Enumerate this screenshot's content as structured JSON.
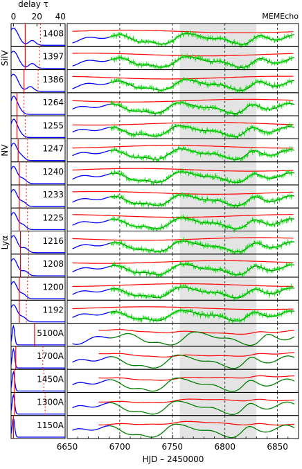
{
  "chart_data": {
    "type": "line",
    "title": "MEMEcho",
    "delay_axis": {
      "label": "delay τ",
      "ticks": [
        "0",
        "20",
        "40"
      ],
      "range": [
        -2,
        44
      ]
    },
    "time_axis": {
      "label": "HJD – 2450000",
      "ticks": [
        "6650",
        "6700",
        "6750",
        "6800",
        "6850"
      ],
      "range": [
        6650,
        6870
      ],
      "grid_dashed_at": [
        6700,
        6750,
        6800,
        6850
      ],
      "shaded_span": [
        6757,
        6830
      ]
    },
    "line_groups": [
      {
        "name": "SiIV",
        "rows": [
          "1408",
          "1397",
          "1386"
        ]
      },
      {
        "name": "NV",
        "rows": [
          "1255",
          "1247",
          "1240"
        ]
      },
      {
        "name": "Lyα",
        "rows": [
          "1225",
          "1216",
          "1208"
        ]
      }
    ],
    "rows": [
      {
        "label": "1408",
        "delay_line": 10,
        "dashed_delays": [
          23
        ]
      },
      {
        "label": "1397",
        "delay_line": 10,
        "dashed_delays": [
          22
        ]
      },
      {
        "label": "1386",
        "delay_line": 9,
        "dashed_delays": [
          21
        ]
      },
      {
        "label": "1264",
        "delay_line": 3,
        "dashed_delays": [
          9
        ]
      },
      {
        "label": "1255",
        "delay_line": 3,
        "dashed_delays": [
          10
        ]
      },
      {
        "label": "1247",
        "delay_line": 4,
        "dashed_delays": [
          12
        ]
      },
      {
        "label": "1240",
        "delay_line": 5,
        "dashed_delays": [
          11
        ]
      },
      {
        "label": "1233",
        "delay_line": 5,
        "dashed_delays": [
          11
        ]
      },
      {
        "label": "1225",
        "delay_line": 5,
        "dashed_delays": [
          12
        ]
      },
      {
        "label": "1216",
        "delay_line": 6,
        "dashed_delays": [
          13
        ]
      },
      {
        "label": "1208",
        "delay_line": 6,
        "dashed_delays": [
          13
        ]
      },
      {
        "label": "1200",
        "delay_line": 5,
        "dashed_delays": [
          12
        ]
      },
      {
        "label": "1192",
        "delay_line": 5,
        "dashed_delays": [
          11
        ]
      },
      {
        "label": "5100A",
        "delay_line": 18,
        "dashed_delays": []
      },
      {
        "label": "1700A",
        "delay_line": 2,
        "dashed_delays": [
          25
        ]
      },
      {
        "label": "1450A",
        "delay_line": 1,
        "dashed_delays": [
          26
        ]
      },
      {
        "label": "1300A",
        "delay_line": 1,
        "dashed_delays": [
          27
        ]
      },
      {
        "label": "1150A",
        "delay_line": 0,
        "dashed_delays": []
      }
    ],
    "colors": {
      "data_points": "#00e000",
      "model_fit": "#008000",
      "background_model": "#ff0000",
      "transfer_function": "#0000ff",
      "shading": "#e4e4e4",
      "delay_marker": "#ff0000"
    },
    "grid": true,
    "legend": "none"
  }
}
